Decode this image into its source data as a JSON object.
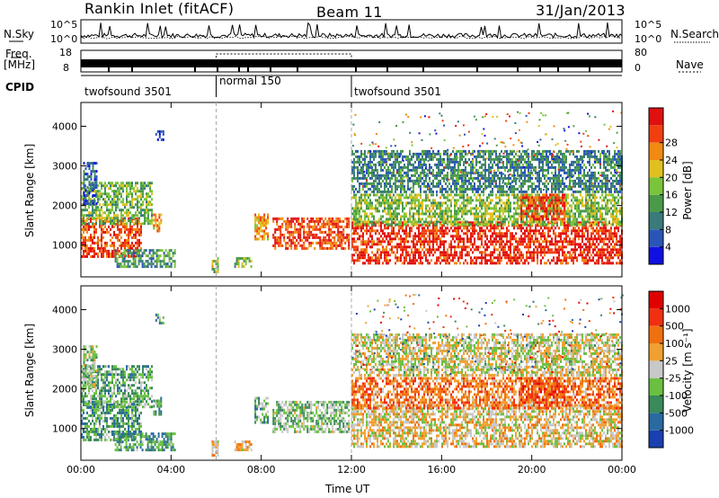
{
  "header": {
    "station": "Rankin Inlet (fitACF)",
    "beam": "Beam 11",
    "date": "31/Jan/2013"
  },
  "side_labels": {
    "nsky": "N.Sky",
    "freq": "Freq.",
    "mhz": "[MHz]",
    "cpid": "CPID",
    "nsearch": "N.Search",
    "nave": "Nave"
  },
  "ticks": {
    "nsky_left": [
      "10^5",
      "10^0"
    ],
    "nsky_right": [
      "10^5",
      "10^0"
    ],
    "freq_left": [
      "18",
      "8"
    ],
    "freq_right": [
      "80",
      "0"
    ]
  },
  "cpid_segments": [
    {
      "label": "twofsound 3501",
      "start": 0,
      "end": 6
    },
    {
      "label": "normal 150",
      "start": 6,
      "end": 12
    },
    {
      "label": "twofsound 3501",
      "start": 12,
      "end": 24
    }
  ],
  "x_axis": {
    "label": "Time UT",
    "ticks": [
      "00:00",
      "04:00",
      "08:00",
      "12:00",
      "16:00",
      "20:00",
      "00:00"
    ],
    "tick_hours": [
      0,
      4,
      8,
      12,
      16,
      20,
      24
    ]
  },
  "y_axis": {
    "label": "Slant Range [km]",
    "ticks": [
      "1000",
      "2000",
      "3000",
      "4000"
    ],
    "tick_values": [
      1000,
      2000,
      3000,
      4000
    ],
    "range": [
      200,
      4600
    ]
  },
  "power_bar": {
    "label": "Power [dB]",
    "ticks": [
      "4",
      "8",
      "12",
      "16",
      "20",
      "24",
      "28"
    ],
    "colors": [
      "#1010e0",
      "#2a55b8",
      "#3a7a7a",
      "#4a9a4a",
      "#7ac43a",
      "#e0c020",
      "#f08a10",
      "#f04010",
      "#e01010"
    ]
  },
  "velocity_bar": {
    "label": "Velocity [m s⁻¹]",
    "ticks": [
      "1000",
      "500",
      "100",
      "25",
      "-25",
      "-100",
      "-500",
      "-1000"
    ],
    "colors": [
      "#1a3fb0",
      "#2a6aa0",
      "#3a8a5a",
      "#6ac040",
      "#c8c8c8",
      "#f0a030",
      "#f07010",
      "#f03010",
      "#e00000"
    ]
  },
  "chart_data": [
    {
      "type": "heatmap",
      "name": "power",
      "xlabel": "Time UT",
      "ylabel": "Slant Range [km]",
      "xlim": [
        0,
        24
      ],
      "ylim": [
        200,
        4600
      ],
      "colorbar_label": "Power [dB]",
      "regions": [
        {
          "t0": 0.0,
          "t1": 2.7,
          "r0": 700,
          "r1": 1700,
          "level": 0.85
        },
        {
          "t0": 0.0,
          "t1": 3.2,
          "r0": 1500,
          "r1": 2600,
          "level": 0.45
        },
        {
          "t0": 0.1,
          "t1": 0.7,
          "r0": 2000,
          "r1": 3100,
          "level": 0.2
        },
        {
          "t0": 1.5,
          "t1": 4.2,
          "r0": 400,
          "r1": 900,
          "level": 0.35
        },
        {
          "t0": 3.2,
          "t1": 3.6,
          "r0": 1300,
          "r1": 1800,
          "level": 0.7
        },
        {
          "t0": 3.3,
          "t1": 3.7,
          "r0": 3600,
          "r1": 3900,
          "level": 0.15
        },
        {
          "t0": 5.8,
          "t1": 6.1,
          "r0": 300,
          "r1": 700,
          "level": 0.5
        },
        {
          "t0": 6.8,
          "t1": 7.6,
          "r0": 400,
          "r1": 700,
          "level": 0.45
        },
        {
          "t0": 7.7,
          "t1": 8.3,
          "r0": 1100,
          "r1": 1800,
          "level": 0.7
        },
        {
          "t0": 8.5,
          "t1": 11.9,
          "r0": 900,
          "r1": 1700,
          "level": 0.85
        },
        {
          "t0": 12.0,
          "t1": 24.0,
          "r0": 500,
          "r1": 1600,
          "level": 0.9
        },
        {
          "t0": 12.0,
          "t1": 24.0,
          "r0": 1500,
          "r1": 2300,
          "level": 0.5
        },
        {
          "t0": 12.0,
          "t1": 24.0,
          "r0": 2300,
          "r1": 3400,
          "level": 0.3
        },
        {
          "t0": 19.5,
          "t1": 21.5,
          "r0": 1600,
          "r1": 2300,
          "level": 0.85
        }
      ]
    },
    {
      "type": "heatmap",
      "name": "velocity",
      "xlabel": "Time UT",
      "ylabel": "Slant Range [km]",
      "xlim": [
        0,
        24
      ],
      "ylim": [
        200,
        4600
      ],
      "colorbar_label": "Velocity [m s⁻¹]",
      "regions": [
        {
          "t0": 0.0,
          "t1": 2.7,
          "r0": 700,
          "r1": 1700,
          "level": 0.3
        },
        {
          "t0": 0.0,
          "t1": 3.2,
          "r0": 1500,
          "r1": 2600,
          "level": 0.35
        },
        {
          "t0": 0.1,
          "t1": 0.7,
          "r0": 2000,
          "r1": 3100,
          "level": 0.45
        },
        {
          "t0": 1.5,
          "t1": 4.2,
          "r0": 400,
          "r1": 900,
          "level": 0.3
        },
        {
          "t0": 3.2,
          "t1": 3.6,
          "r0": 1300,
          "r1": 1800,
          "level": 0.3
        },
        {
          "t0": 3.3,
          "t1": 3.7,
          "r0": 3600,
          "r1": 3900,
          "level": 0.3
        },
        {
          "t0": 5.8,
          "t1": 6.1,
          "r0": 300,
          "r1": 700,
          "level": 0.6
        },
        {
          "t0": 6.8,
          "t1": 7.6,
          "r0": 400,
          "r1": 700,
          "level": 0.6
        },
        {
          "t0": 7.7,
          "t1": 8.3,
          "r0": 1100,
          "r1": 1800,
          "level": 0.35
        },
        {
          "t0": 8.5,
          "t1": 11.9,
          "r0": 900,
          "r1": 1700,
          "level": 0.4
        },
        {
          "t0": 12.0,
          "t1": 24.0,
          "r0": 500,
          "r1": 1600,
          "level": 0.55
        },
        {
          "t0": 12.0,
          "t1": 24.0,
          "r0": 1500,
          "r1": 2300,
          "level": 0.7
        },
        {
          "t0": 12.0,
          "t1": 24.0,
          "r0": 2300,
          "r1": 3400,
          "level": 0.5
        },
        {
          "t0": 19.5,
          "t1": 21.5,
          "r0": 1600,
          "r1": 2300,
          "level": 0.8
        }
      ]
    }
  ]
}
